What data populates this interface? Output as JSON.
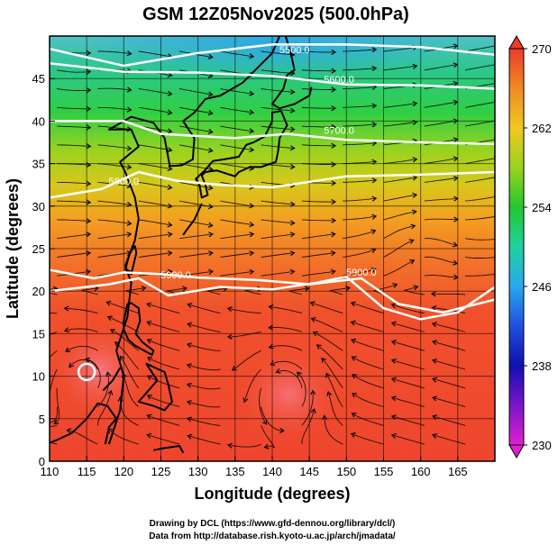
{
  "title": "GSM 12Z05Nov2025 (500.0hPa)",
  "xlabel": "Longitude (degrees)",
  "ylabel": "Latitude  (degrees)",
  "x_ticks": [
    "110",
    "115",
    "120",
    "125",
    "130",
    "135",
    "140",
    "145",
    "150",
    "155",
    "160",
    "165"
  ],
  "y_ticks": [
    "0",
    "5",
    "10",
    "15",
    "20",
    "25",
    "30",
    "35",
    "40",
    "45"
  ],
  "colorbar": {
    "ticks": [
      "230",
      "238",
      "246",
      "254",
      "262",
      "270"
    ],
    "range": [
      230,
      270
    ]
  },
  "map": {
    "lon_range": [
      110,
      170
    ],
    "lat_range": [
      0,
      50
    ],
    "fill_variable_range": [
      230,
      270
    ],
    "contour_labels": [
      "5500.0",
      "5600.0",
      "5700.0",
      "5800.0",
      "5900.0",
      "5900.0"
    ],
    "colors": {
      "cold": "#2aa6e6",
      "cool": "#28c888",
      "mid": "#9ad21c",
      "warm": "#f0a020",
      "hot": "#f04a2c",
      "contour": "#ffffff"
    },
    "icons": [
      "wind-streamline-arrow",
      "coastline"
    ]
  },
  "credits": {
    "line1": "Drawing by DCL (https://www.gfd-dennou.org/library/dcl/)",
    "line2": "Data from http://database.rish.kyoto-u.ac.jp/arch/jmadata/"
  }
}
